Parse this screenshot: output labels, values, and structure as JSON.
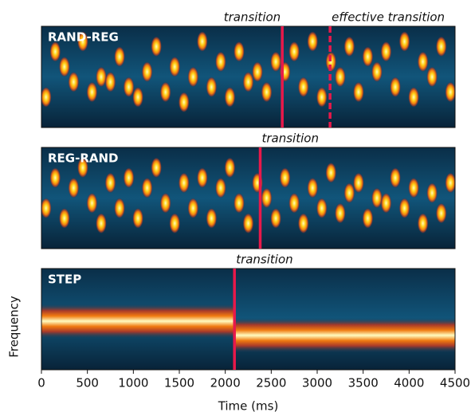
{
  "chart_data": [
    {
      "type": "spectrogram",
      "label": "RAND-REG",
      "transitions": [
        {
          "time": 2620,
          "label": "transition",
          "style": "solid",
          "label_align": "end"
        },
        {
          "time": 3140,
          "label": "effective transition",
          "style": "dashed",
          "label_align": "start"
        }
      ],
      "xlim": [
        0,
        4500
      ],
      "ylim": [
        0,
        100
      ],
      "x": [
        0,
        100,
        200,
        300,
        400,
        500,
        600,
        700,
        800,
        900,
        1000,
        1100,
        1200,
        1300,
        1400,
        1500,
        1600,
        1700,
        1800,
        1900,
        2000,
        2100,
        2200,
        2300,
        2400,
        2500,
        2600,
        2700,
        2800,
        2900,
        3000,
        3100,
        3200,
        3300,
        3400,
        3500,
        3600,
        3700,
        3800,
        3900,
        4000,
        4100,
        4200,
        4300,
        4400
      ],
      "values": [
        30,
        75,
        60,
        45,
        85,
        35,
        50,
        45,
        70,
        40,
        30,
        55,
        80,
        35,
        60,
        25,
        50,
        85,
        40,
        65,
        30,
        75,
        45,
        55,
        35,
        65,
        55,
        75,
        40,
        85,
        30,
        65,
        50,
        80,
        35,
        70,
        55,
        75,
        40,
        85,
        30,
        65,
        50,
        80,
        35
      ]
    },
    {
      "type": "spectrogram",
      "label": "REG-RAND",
      "transitions": [
        {
          "time": 2380,
          "label": "transition",
          "style": "solid",
          "label_align": "start"
        }
      ],
      "xlim": [
        0,
        4500
      ],
      "ylim": [
        0,
        100
      ],
      "x": [
        0,
        100,
        200,
        300,
        400,
        500,
        600,
        700,
        800,
        900,
        1000,
        1100,
        1200,
        1300,
        1400,
        1500,
        1600,
        1700,
        1800,
        1900,
        2000,
        2100,
        2200,
        2300,
        2400,
        2500,
        2600,
        2700,
        2800,
        2900,
        3000,
        3100,
        3200,
        3300,
        3400,
        3500,
        3600,
        3700,
        3800,
        3900,
        4000,
        4100,
        4200,
        4300,
        4400
      ],
      "values": [
        40,
        70,
        30,
        60,
        80,
        45,
        25,
        65,
        40,
        70,
        30,
        60,
        80,
        45,
        25,
        65,
        40,
        70,
        30,
        60,
        80,
        45,
        25,
        65,
        50,
        30,
        70,
        45,
        25,
        60,
        40,
        75,
        35,
        55,
        65,
        30,
        50,
        45,
        70,
        40,
        60,
        25,
        55,
        35,
        65
      ]
    },
    {
      "type": "step",
      "label": "STEP",
      "transitions": [
        {
          "time": 2100,
          "label": "transition",
          "style": "solid",
          "label_align": "start"
        }
      ],
      "xlim": [
        0,
        4500
      ],
      "ylim": [
        0,
        100
      ],
      "x": [
        0,
        2100
      ],
      "values": [
        48,
        34
      ],
      "xticks": [
        0,
        500,
        1000,
        1500,
        2000,
        2500,
        3000,
        3500,
        4000,
        4500
      ],
      "xlabel": "Time (ms)",
      "ylabel": "Frequency"
    }
  ]
}
